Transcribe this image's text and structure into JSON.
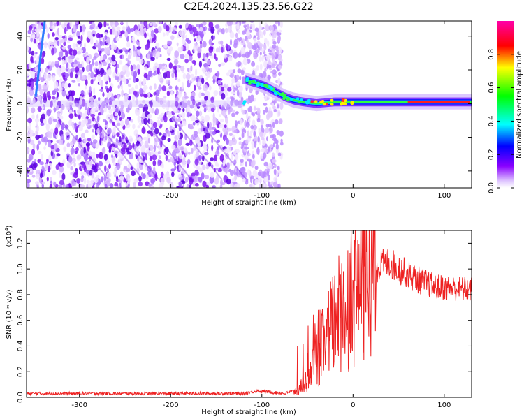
{
  "title": "C2E4.2024.135.23.56.G22",
  "chart_data": [
    {
      "type": "heatmap",
      "title": "C2E4.2024.135.23.56.G22",
      "xlabel": "Height of straight line (km)",
      "ylabel": "Frequency (Hz)",
      "xlim": [
        -358,
        130
      ],
      "ylim": [
        -50,
        49
      ],
      "xticks": [
        -300,
        -200,
        -100,
        0,
        100
      ],
      "yticks": [
        -40,
        -20,
        0,
        20,
        40
      ],
      "noise_region_x": [
        -358,
        -78
      ],
      "signal_track": [
        {
          "x": -118,
          "y": 14
        },
        {
          "x": -105,
          "y": 12
        },
        {
          "x": -95,
          "y": 10
        },
        {
          "x": -85,
          "y": 7
        },
        {
          "x": -75,
          "y": 4
        },
        {
          "x": -65,
          "y": 2
        },
        {
          "x": -55,
          "y": 1
        },
        {
          "x": -40,
          "y": 0
        },
        {
          "x": -20,
          "y": 1
        },
        {
          "x": 0,
          "y": 1
        },
        {
          "x": 40,
          "y": 1
        },
        {
          "x": 80,
          "y": 1
        },
        {
          "x": 130,
          "y": 1
        }
      ],
      "colorbar": {
        "label": "Normalized spectral amplitude",
        "range": [
          0.0,
          1.0
        ],
        "ticks": [
          "0.0",
          "0.2",
          "0.4",
          "0.6",
          "0.8"
        ]
      }
    },
    {
      "type": "line",
      "xlabel": "Height of straight line (km)",
      "ylabel": "SNR (10 * v/v)",
      "scale_label": "(x10",
      "scale_exp": "4",
      "scale_close": ")",
      "xlim": [
        -358,
        130
      ],
      "ylim": [
        0,
        1.3
      ],
      "xticks": [
        -300,
        -200,
        -100,
        0,
        100
      ],
      "yticks": [
        "0.0",
        "0.2",
        "0.4",
        "0.6",
        "0.8",
        "1.0",
        "1.2"
      ],
      "series": [
        {
          "name": "SNR",
          "color": "#ee2222",
          "envelope": [
            {
              "x": -358,
              "y": 0.03
            },
            {
              "x": -120,
              "y": 0.03
            },
            {
              "x": -105,
              "y": 0.05
            },
            {
              "x": -75,
              "y": 0.03
            },
            {
              "x": -60,
              "y": 0.06
            },
            {
              "x": -50,
              "y": 0.15
            },
            {
              "x": -40,
              "y": 0.3
            },
            {
              "x": -30,
              "y": 0.45
            },
            {
              "x": -20,
              "y": 0.6
            },
            {
              "x": -10,
              "y": 0.72
            },
            {
              "x": 0,
              "y": 0.82
            },
            {
              "x": 10,
              "y": 0.92
            },
            {
              "x": 20,
              "y": 0.98
            },
            {
              "x": 30,
              "y": 1.03
            },
            {
              "x": 40,
              "y": 1.05
            },
            {
              "x": 55,
              "y": 0.98
            },
            {
              "x": 70,
              "y": 0.92
            },
            {
              "x": 90,
              "y": 0.86
            },
            {
              "x": 110,
              "y": 0.85
            },
            {
              "x": 130,
              "y": 0.84
            }
          ]
        }
      ]
    }
  ]
}
